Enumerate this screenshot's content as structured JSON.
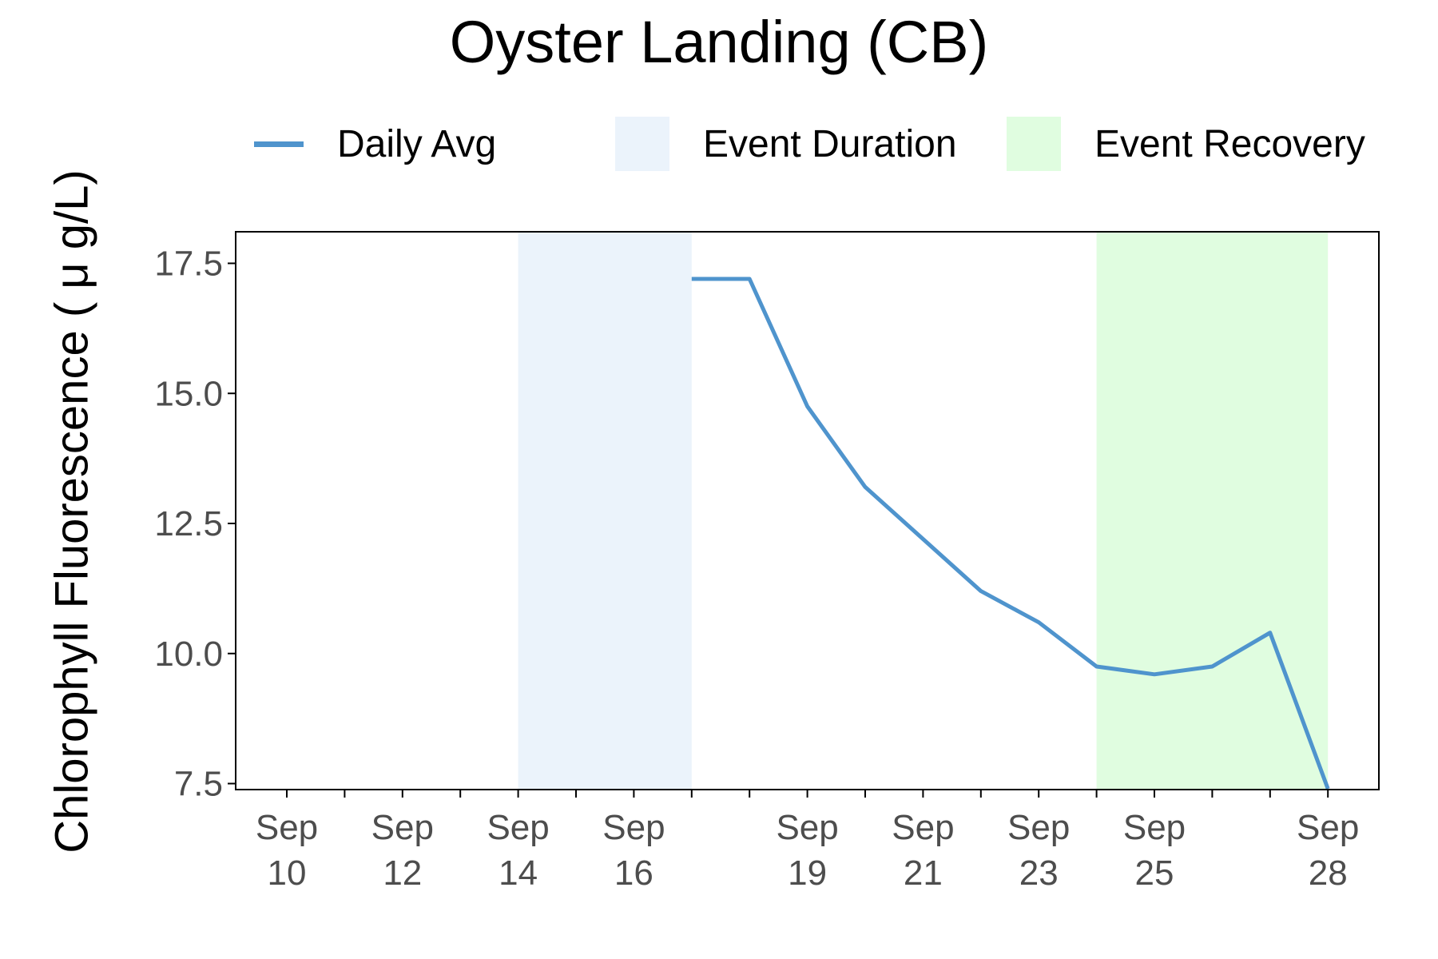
{
  "title": "Oyster Landing (CB)",
  "ylabel": "Chlorophyll Fluorescence ( μ g/L)",
  "colors": {
    "line": "#4f94cd",
    "line_recovery": "#4aa0c0",
    "event_duration": "#ebf3fb",
    "event_recovery": "#e0fde0",
    "axis": "#000000",
    "tick_text": "#4d4d4d"
  },
  "legend": {
    "daily_avg": "Daily Avg",
    "event_duration": "Event Duration",
    "event_recovery": "Event Recovery"
  },
  "chart_data": {
    "type": "line",
    "title": "Oyster Landing (CB)",
    "xlabel": "",
    "ylabel": "Chlorophyll Fluorescence ( μ g/L)",
    "xlim": [
      "2023-09-09",
      "2023-09-28"
    ],
    "ylim": [
      7.0,
      17.7
    ],
    "grid": false,
    "legend_position": "top",
    "x_ticks": [
      {
        "date": "2023-09-10",
        "label": [
          "Sep",
          "10"
        ]
      },
      {
        "date": "2023-09-12",
        "label": [
          "Sep",
          "12"
        ]
      },
      {
        "date": "2023-09-14",
        "label": [
          "Sep",
          "14"
        ]
      },
      {
        "date": "2023-09-16",
        "label": [
          "Sep",
          "16"
        ]
      },
      {
        "date": "2023-09-19",
        "label": [
          "Sep",
          "19"
        ]
      },
      {
        "date": "2023-09-21",
        "label": [
          "Sep",
          "21"
        ]
      },
      {
        "date": "2023-09-23",
        "label": [
          "Sep",
          "23"
        ]
      },
      {
        "date": "2023-09-25",
        "label": [
          "Sep",
          "25"
        ]
      },
      {
        "date": "2023-09-28",
        "label": [
          "Sep",
          "28"
        ]
      }
    ],
    "x_minor_ticks": [
      "2023-09-11",
      "2023-09-13",
      "2023-09-15",
      "2023-09-17",
      "2023-09-18",
      "2023-09-20",
      "2023-09-22",
      "2023-09-24",
      "2023-09-26",
      "2023-09-27"
    ],
    "y_ticks": [
      7.5,
      10.0,
      12.5,
      15.0,
      17.5
    ],
    "y_tick_labels": [
      "7.5",
      "10.0",
      "12.5",
      "15.0",
      "17.5"
    ],
    "bands": [
      {
        "name": "Event Duration",
        "from": "2023-09-14",
        "to": "2023-09-17"
      },
      {
        "name": "Event Recovery",
        "from": "2023-09-24",
        "to": "2023-09-28"
      }
    ],
    "series": [
      {
        "name": "Daily Avg",
        "x": [
          "2023-09-17",
          "2023-09-18",
          "2023-09-19",
          "2023-09-20",
          "2023-09-21",
          "2023-09-22",
          "2023-09-23",
          "2023-09-24",
          "2023-09-25",
          "2023-09-26",
          "2023-09-27",
          "2023-09-28"
        ],
        "y": [
          17.2,
          17.2,
          14.75,
          13.2,
          12.2,
          11.2,
          10.6,
          9.75,
          9.6,
          9.75,
          10.4,
          7.4
        ]
      }
    ]
  }
}
